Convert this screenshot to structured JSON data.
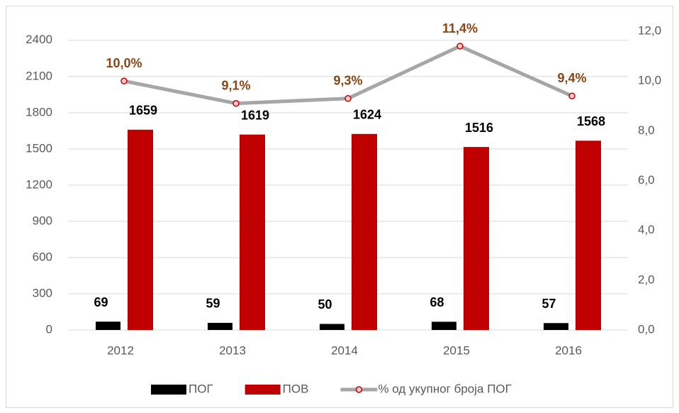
{
  "chart_data": {
    "type": "bar",
    "categories": [
      "2012",
      "2013",
      "2014",
      "2015",
      "2016"
    ],
    "series": [
      {
        "name": "ПОГ",
        "color": "#000000",
        "values": [
          69,
          59,
          50,
          68,
          57
        ]
      },
      {
        "name": "ПОВ",
        "color": "#c00000",
        "values": [
          1659,
          1619,
          1624,
          1516,
          1568
        ]
      },
      {
        "name": "% од укупног броја ПОГ",
        "color": "#a6a6a6",
        "axis": "y2",
        "values": [
          10.0,
          9.1,
          9.3,
          11.4,
          9.4
        ],
        "value_labels": [
          "10,0%",
          "9,1%",
          "9,3%",
          "11,4%",
          "9,4%"
        ]
      }
    ],
    "ylim": [
      0,
      2475
    ],
    "yticks": [
      0,
      300,
      600,
      900,
      1200,
      1500,
      1800,
      2100,
      2400
    ],
    "y2lim": [
      0,
      12
    ],
    "y2ticks": [
      {
        "value": 0,
        "label": "0,0"
      },
      {
        "value": 2,
        "label": "2,0"
      },
      {
        "value": 4,
        "label": "4,0"
      },
      {
        "value": 6,
        "label": "6,0"
      },
      {
        "value": 8,
        "label": "8,0"
      },
      {
        "value": 10,
        "label": "10,0"
      },
      {
        "value": 12,
        "label": "12,0"
      }
    ],
    "grid": true,
    "legend": "bottom"
  }
}
